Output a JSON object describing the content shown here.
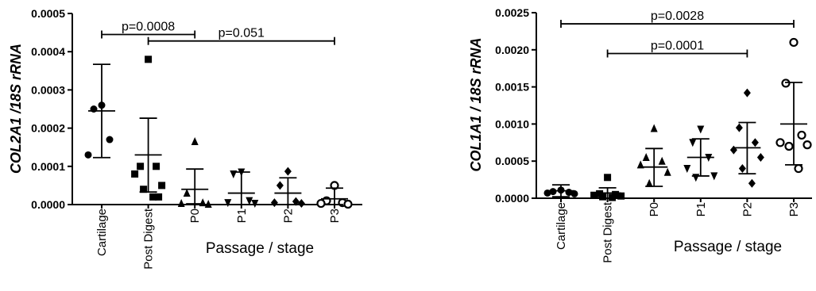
{
  "chart_data": [
    {
      "type": "scatter",
      "ylabel": "COL2A1 /18S rRNA",
      "xlabel": "Passage / stage",
      "categories": [
        "Cartilage",
        "Post Digest",
        "P0",
        "P1",
        "P2",
        "P3"
      ],
      "ylim": [
        0,
        0.0005
      ],
      "yticks": [
        "0.0000",
        "0.0001",
        "0.0002",
        "0.0003",
        "0.0004",
        "0.0005"
      ],
      "markers": [
        "circle",
        "square",
        "triangle",
        "triangle-down",
        "diamond",
        "circle-open"
      ],
      "points": [
        [
          0.00026,
          0.00025,
          0.00017,
          0.00013
        ],
        [
          0.00038,
          0.0001,
          0.0001,
          8e-05,
          5e-05,
          4e-05,
          2e-05,
          2e-05
        ],
        [
          0.000165,
          3e-05,
          5e-06,
          3e-06,
          1e-06
        ],
        [
          8.5e-05,
          8e-05,
          1e-05,
          5e-06,
          3e-06
        ],
        [
          8.7e-05,
          5e-05,
          8e-06,
          5e-06,
          3e-06
        ],
        [
          5e-05,
          1e-05,
          5e-06,
          3e-06,
          1e-06
        ]
      ],
      "mean": [
        0.000245,
        0.00013,
        4e-05,
        3e-05,
        3e-05,
        1.5e-05
      ],
      "sd_upper": [
        0.000367,
        0.000226,
        9.3e-05,
        8.5e-05,
        7e-05,
        4.3e-05
      ],
      "sd_lower": [
        0.000123,
        3.3e-05,
        2e-06,
        0.0,
        0.0,
        0.0
      ],
      "comparisons": [
        {
          "from": "Cartilage",
          "to": "P0",
          "label": "p=0.0008",
          "y": 0.000445
        },
        {
          "from": "Post Digest",
          "to": "P3",
          "label": "p=0.051",
          "y": 0.000428
        }
      ]
    },
    {
      "type": "scatter",
      "ylabel": "COL1A1 / 18S rRNA",
      "xlabel": "Passage / stage",
      "categories": [
        "Cartilage",
        "Post Digest",
        "P0",
        "P1",
        "P2",
        "P3"
      ],
      "ylim": [
        0,
        0.0025
      ],
      "yticks": [
        "0.0000",
        "0.0005",
        "0.0010",
        "0.0015",
        "0.0020",
        "0.0025"
      ],
      "markers": [
        "circle",
        "square",
        "triangle",
        "triangle-down",
        "diamond",
        "circle-open"
      ],
      "points": [
        [
          0.00011,
          9e-05,
          8e-05,
          7e-05,
          6e-05
        ],
        [
          0.00028,
          6e-05,
          5e-05,
          4e-05,
          3e-05,
          2e-05,
          1e-05
        ],
        [
          0.00094,
          0.00055,
          0.0005,
          0.00045,
          0.00035,
          0.0002
        ],
        [
          0.00093,
          0.00075,
          0.00055,
          0.0004,
          0.0003,
          0.00028
        ],
        [
          0.00142,
          0.00095,
          0.00075,
          0.00065,
          0.00055,
          0.0004,
          0.0002
        ],
        [
          0.0021,
          0.00155,
          0.00085,
          0.00075,
          0.00072,
          0.0007,
          0.0004
        ]
      ],
      "mean": [
        0.0001,
        7e-05,
        0.00042,
        0.00055,
        0.00068,
        0.001
      ],
      "sd_upper": [
        0.00018,
        0.00014,
        0.00067,
        0.0008,
        0.00102,
        0.00156
      ],
      "sd_lower": [
        2e-05,
        0.0,
        0.00016,
        0.0003,
        0.00033,
        0.00045
      ],
      "comparisons": [
        {
          "from": "Cartilage",
          "to": "P3",
          "label": "p=0.0028",
          "y": 0.00235
        },
        {
          "from": "Post Digest",
          "to": "P2",
          "label": "p=0.0001",
          "y": 0.00195
        }
      ]
    }
  ]
}
